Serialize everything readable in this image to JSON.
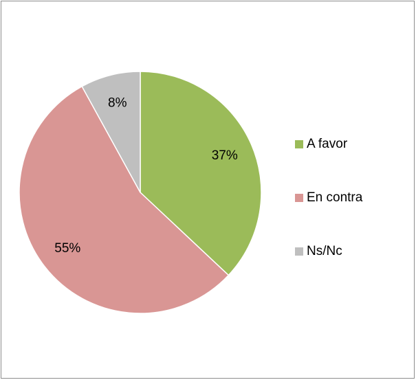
{
  "chart_data": {
    "type": "pie",
    "categories": [
      "A favor",
      "En contra",
      "Ns/Nc"
    ],
    "values": [
      37,
      55,
      8
    ],
    "value_labels": [
      "37%",
      "55%",
      "8%"
    ],
    "colors": [
      "#9bbb59",
      "#d99694",
      "#bfbfbf"
    ],
    "legend": "right"
  }
}
